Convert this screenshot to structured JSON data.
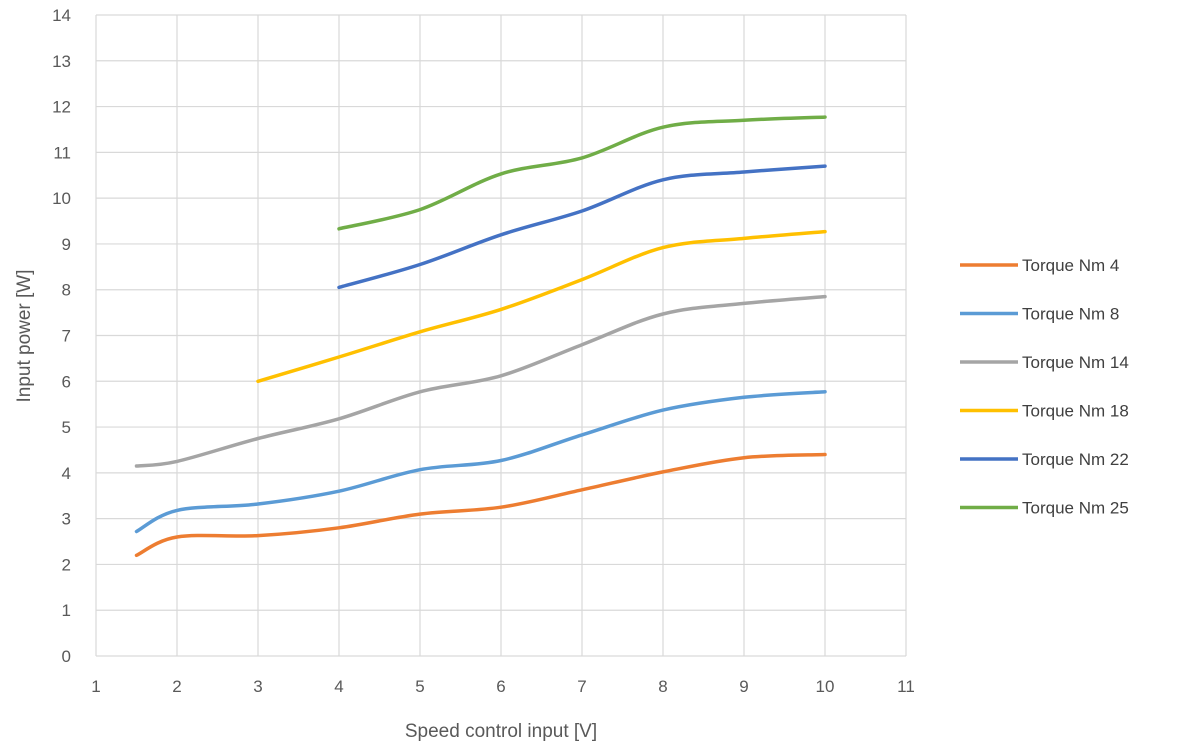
{
  "chart_data": {
    "type": "line",
    "xlabel": "Speed control input [V]",
    "ylabel": "Input power [W]",
    "xlim": [
      1,
      11
    ],
    "ylim": [
      0,
      14
    ],
    "x_ticks": [
      1,
      2,
      3,
      4,
      5,
      6,
      7,
      8,
      9,
      10,
      11
    ],
    "y_ticks": [
      0,
      1,
      2,
      3,
      4,
      5,
      6,
      7,
      8,
      9,
      10,
      11,
      12,
      13,
      14
    ],
    "grid": true,
    "legend_position": "right",
    "series": [
      {
        "name": "Torque Nm 4",
        "color": "#ED7D31",
        "x": [
          1.5,
          2,
          3,
          4,
          5,
          6,
          7,
          8,
          9,
          10
        ],
        "y": [
          2.2,
          2.6,
          2.63,
          2.8,
          3.1,
          3.25,
          3.63,
          4.02,
          4.33,
          4.4
        ]
      },
      {
        "name": "Torque Nm 8",
        "color": "#5B9BD5",
        "x": [
          1.5,
          2,
          3,
          4,
          5,
          6,
          7,
          8,
          9,
          10
        ],
        "y": [
          2.72,
          3.18,
          3.32,
          3.6,
          4.07,
          4.27,
          4.83,
          5.37,
          5.65,
          5.77
        ]
      },
      {
        "name": "Torque Nm 14",
        "color": "#A5A5A5",
        "x": [
          1.5,
          2,
          3,
          4,
          5,
          6,
          7,
          8,
          9,
          10
        ],
        "y": [
          4.15,
          4.25,
          4.75,
          5.18,
          5.77,
          6.12,
          6.8,
          7.47,
          7.7,
          7.85
        ]
      },
      {
        "name": "Torque Nm 18",
        "color": "#FFC000",
        "x": [
          3,
          4,
          5,
          6,
          7,
          8,
          9,
          10
        ],
        "y": [
          6.0,
          6.53,
          7.08,
          7.57,
          8.22,
          8.92,
          9.12,
          9.27
        ]
      },
      {
        "name": "Torque Nm 22",
        "color": "#4472C4",
        "x": [
          4,
          5,
          6,
          7,
          8,
          9,
          10
        ],
        "y": [
          8.05,
          8.55,
          9.2,
          9.72,
          10.4,
          10.57,
          10.7
        ]
      },
      {
        "name": "Torque Nm 25",
        "color": "#70AD47",
        "x": [
          4,
          5,
          6,
          7,
          8,
          9,
          10
        ],
        "y": [
          9.33,
          9.75,
          10.53,
          10.88,
          11.55,
          11.7,
          11.77
        ]
      }
    ]
  }
}
